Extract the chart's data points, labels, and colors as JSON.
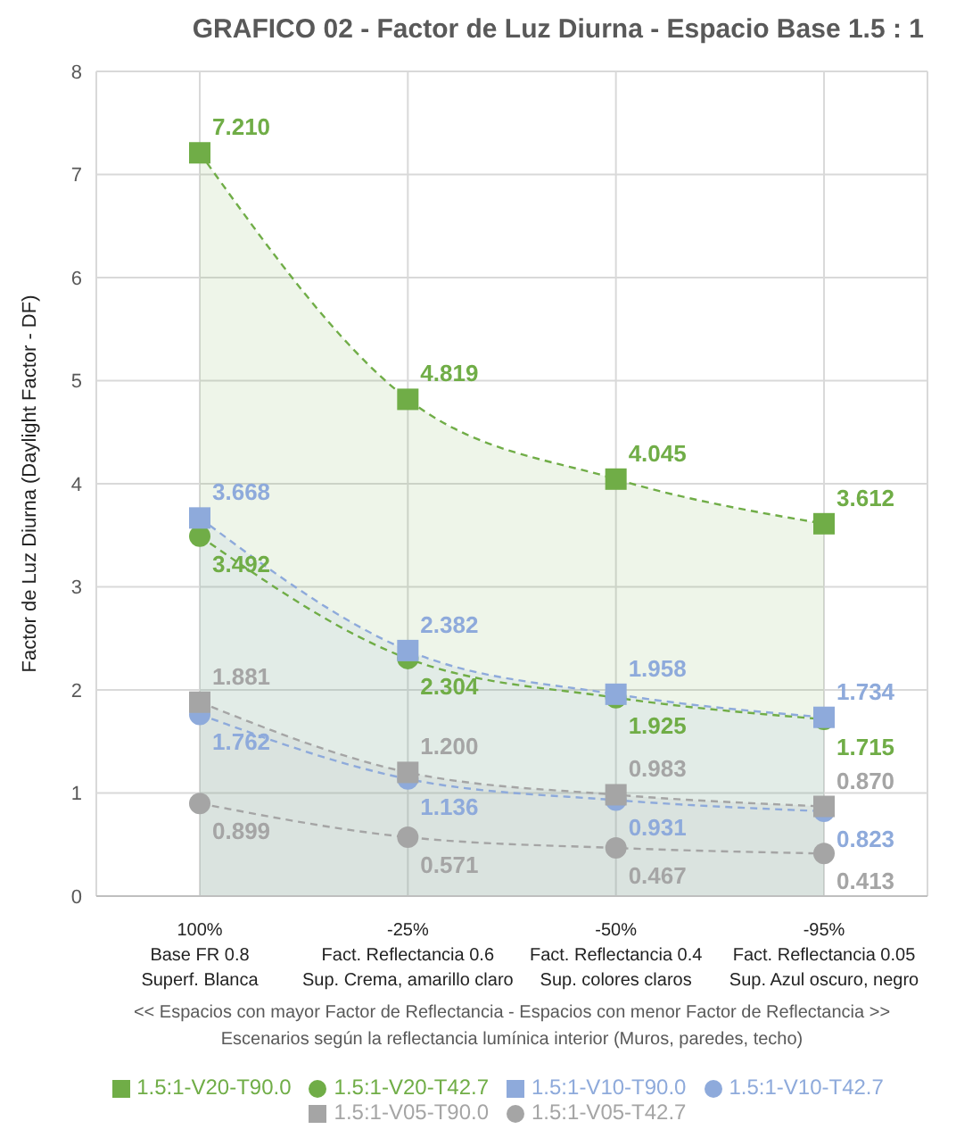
{
  "chart_data": {
    "type": "line",
    "title": "GRAFICO 02 - Factor de Luz Diurna - Espacio Base  1.5 : 1",
    "xlabel": "<<  Espacios con mayor Factor de Reflectancia  -  Espacios con menor Factor de Reflectancia  >>\nEscenarios según la reflectancia lumínica interior (Muros, paredes, techo)",
    "ylabel": "Factor de Luz Diurna (Daylight Factor - DF)",
    "categories": [
      "100%\nBase FR 0.8\nSuperf. Blanca",
      "-25%\nFact. Reflectancia 0.6\nSup. Crema, amarillo claro",
      "-50%\nFact. Reflectancia 0.4\nSup. colores claros",
      "-95%\nFact. Reflectancia 0.05\nSup. Azul oscuro, negro"
    ],
    "series": [
      {
        "name": "1.5:1-V20-T90.0",
        "type": "area",
        "color": "#70ad47",
        "marker": "square",
        "values": [
          7.21,
          4.819,
          4.045,
          3.612
        ],
        "value_labels": [
          "7.210",
          "4.819",
          "4.045",
          "3.612"
        ]
      },
      {
        "name": "1.5:1-V20-T42.7",
        "color": "#70ad47",
        "marker": "circle",
        "values": [
          3.492,
          2.304,
          1.925,
          1.715
        ],
        "value_labels": [
          "3.492",
          "2.304",
          "1.925",
          "1.715"
        ]
      },
      {
        "name": "1.5:1-V10-T90.0",
        "type": "area",
        "color": "#8eaadb",
        "marker": "square",
        "values": [
          3.668,
          2.382,
          1.958,
          1.734
        ],
        "value_labels": [
          "3.668",
          "2.382",
          "1.958",
          "1.734"
        ]
      },
      {
        "name": "1.5:1-V10-T42.7",
        "color": "#8eaadb",
        "marker": "circle",
        "values": [
          1.762,
          1.136,
          0.931,
          0.823
        ],
        "value_labels": [
          "1.762",
          "1.136",
          "0.931",
          "0.823"
        ]
      },
      {
        "name": "1.5:1-V05-T90.0",
        "type": "area",
        "color": "#a5a5a5",
        "marker": "square",
        "values": [
          1.881,
          1.2,
          0.983,
          0.87
        ],
        "value_labels": [
          "1.881",
          "1.200",
          "0.983",
          "0.870"
        ]
      },
      {
        "name": "1.5:1-V05-T42.7",
        "color": "#a5a5a5",
        "marker": "circle",
        "values": [
          0.899,
          0.571,
          0.467,
          0.413
        ],
        "value_labels": [
          "0.899",
          "0.571",
          "0.467",
          "0.413"
        ]
      }
    ],
    "ylim": [
      0,
      8
    ],
    "yticks": [
      0,
      1,
      2,
      3,
      4,
      5,
      6,
      7,
      8
    ],
    "grid": true,
    "legend": "bottom",
    "line_style": "dashed",
    "data_labels": true
  }
}
